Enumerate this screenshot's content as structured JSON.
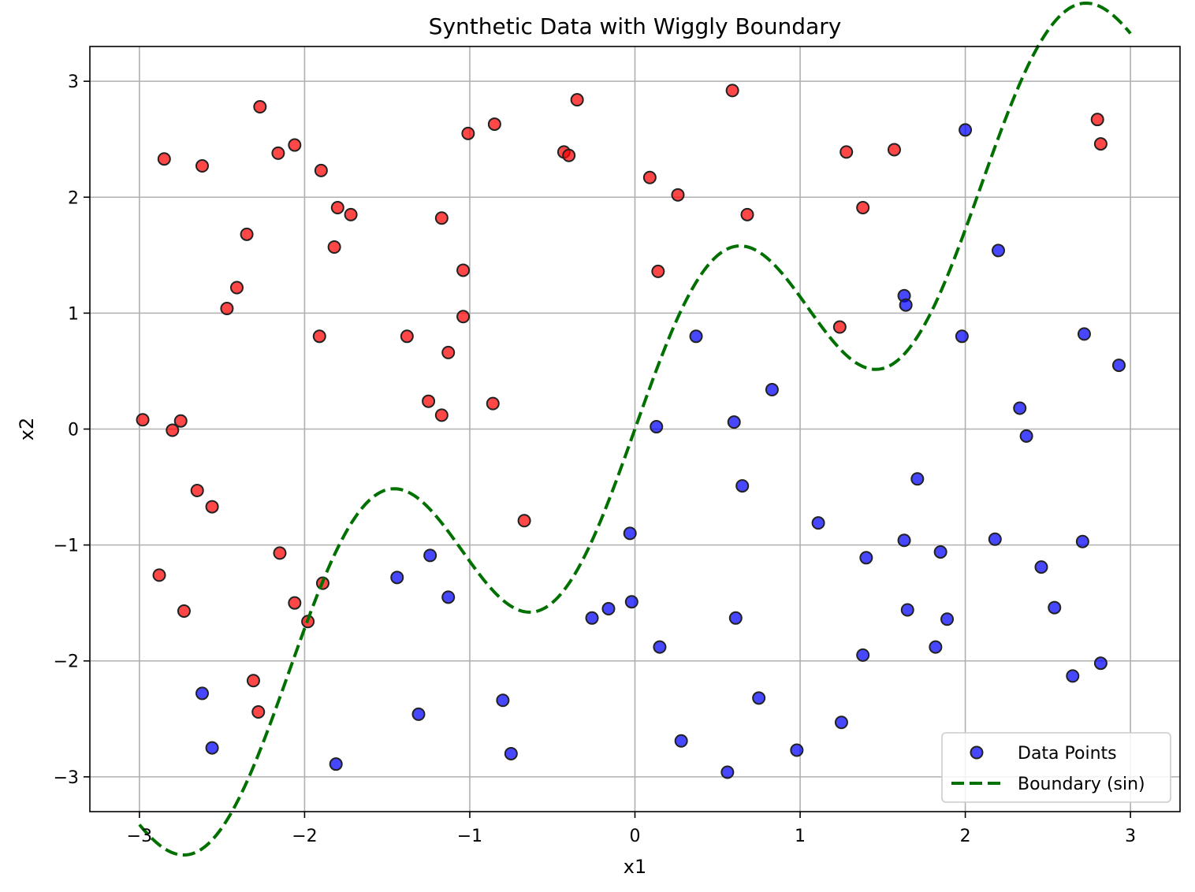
{
  "chart_data": {
    "type": "scatter",
    "title": "Synthetic Data with Wiggly Boundary",
    "xlabel": "x1",
    "ylabel": "x2",
    "xlim": [
      -3.3,
      3.3
    ],
    "ylim": [
      -3.3,
      3.3
    ],
    "xticks": [
      -3,
      -2,
      -1,
      0,
      1,
      2,
      3
    ],
    "yticks": [
      -3,
      -2,
      -1,
      0,
      1,
      2,
      3
    ],
    "grid": true,
    "legend_position": "lower-right",
    "colors": {
      "class_above": "#ff0000",
      "class_below": "#0000ff",
      "boundary": "#007000"
    },
    "series": [
      {
        "name": "Data Points",
        "type": "scatter",
        "points_above": [
          [
            -2.98,
            0.08
          ],
          [
            -2.85,
            2.33
          ],
          [
            -2.88,
            -1.26
          ],
          [
            -2.8,
            -0.01
          ],
          [
            -2.75,
            0.07
          ],
          [
            -2.73,
            -1.57
          ],
          [
            -2.65,
            -0.53
          ],
          [
            -2.62,
            2.27
          ],
          [
            -2.56,
            -0.67
          ],
          [
            -2.47,
            1.04
          ],
          [
            -2.41,
            1.22
          ],
          [
            -2.35,
            1.68
          ],
          [
            -2.27,
            2.78
          ],
          [
            -2.31,
            -2.17
          ],
          [
            -2.28,
            -2.44
          ],
          [
            -2.16,
            2.38
          ],
          [
            -2.15,
            -1.07
          ],
          [
            -2.06,
            2.45
          ],
          [
            -2.06,
            -1.5
          ],
          [
            -1.98,
            -1.66
          ],
          [
            -1.9,
            2.23
          ],
          [
            -1.91,
            0.8
          ],
          [
            -1.89,
            -1.33
          ],
          [
            -1.82,
            1.57
          ],
          [
            -1.8,
            1.91
          ],
          [
            -1.72,
            1.85
          ],
          [
            -1.38,
            0.8
          ],
          [
            -1.25,
            0.24
          ],
          [
            -1.17,
            1.82
          ],
          [
            -1.17,
            0.12
          ],
          [
            -1.13,
            0.66
          ],
          [
            -1.04,
            1.37
          ],
          [
            -1.04,
            0.97
          ],
          [
            -1.01,
            2.55
          ],
          [
            -0.85,
            2.63
          ],
          [
            -0.86,
            0.22
          ],
          [
            -0.67,
            -0.79
          ],
          [
            -0.43,
            2.39
          ],
          [
            -0.4,
            2.36
          ],
          [
            -0.35,
            2.84
          ],
          [
            0.09,
            2.17
          ],
          [
            0.14,
            1.36
          ],
          [
            0.26,
            2.02
          ],
          [
            0.59,
            2.92
          ],
          [
            0.68,
            1.85
          ],
          [
            1.24,
            0.88
          ],
          [
            1.28,
            2.39
          ],
          [
            1.38,
            1.91
          ],
          [
            1.57,
            2.41
          ],
          [
            2.8,
            2.67
          ],
          [
            2.82,
            2.46
          ]
        ],
        "points_below": [
          [
            -2.62,
            -2.28
          ],
          [
            -2.56,
            -2.75
          ],
          [
            -1.81,
            -2.89
          ],
          [
            -1.44,
            -1.28
          ],
          [
            -1.31,
            -2.46
          ],
          [
            -1.24,
            -1.09
          ],
          [
            -1.13,
            -1.45
          ],
          [
            -0.8,
            -2.34
          ],
          [
            -0.75,
            -2.8
          ],
          [
            -0.26,
            -1.63
          ],
          [
            -0.16,
            -1.55
          ],
          [
            -0.03,
            -0.9
          ],
          [
            -0.02,
            -1.49
          ],
          [
            0.13,
            0.02
          ],
          [
            0.15,
            -1.88
          ],
          [
            0.28,
            -2.69
          ],
          [
            0.37,
            0.8
          ],
          [
            0.56,
            -2.96
          ],
          [
            0.6,
            0.06
          ],
          [
            0.61,
            -1.63
          ],
          [
            0.65,
            -0.49
          ],
          [
            0.75,
            -2.32
          ],
          [
            0.83,
            0.34
          ],
          [
            0.98,
            -2.77
          ],
          [
            1.11,
            -0.81
          ],
          [
            1.25,
            -2.53
          ],
          [
            1.38,
            -1.95
          ],
          [
            1.4,
            -1.11
          ],
          [
            1.63,
            1.15
          ],
          [
            1.64,
            1.07
          ],
          [
            1.63,
            -0.96
          ],
          [
            1.65,
            -1.56
          ],
          [
            1.71,
            -0.43
          ],
          [
            1.82,
            -1.88
          ],
          [
            1.85,
            -1.06
          ],
          [
            1.89,
            -1.64
          ],
          [
            1.98,
            0.8
          ],
          [
            2.0,
            2.58
          ],
          [
            2.18,
            -0.95
          ],
          [
            2.2,
            1.54
          ],
          [
            2.33,
            0.18
          ],
          [
            2.37,
            -0.06
          ],
          [
            2.46,
            -1.19
          ],
          [
            2.54,
            -1.54
          ],
          [
            2.65,
            -2.13
          ],
          [
            2.71,
            -0.97
          ],
          [
            2.72,
            0.82
          ],
          [
            2.82,
            -2.02
          ],
          [
            2.93,
            0.55
          ]
        ]
      },
      {
        "name": "Boundary (sin)",
        "type": "line",
        "style": "dashed",
        "function": "x2 = x1 + sin(3 * x1)",
        "x_range": [
          -3,
          3
        ]
      }
    ]
  }
}
